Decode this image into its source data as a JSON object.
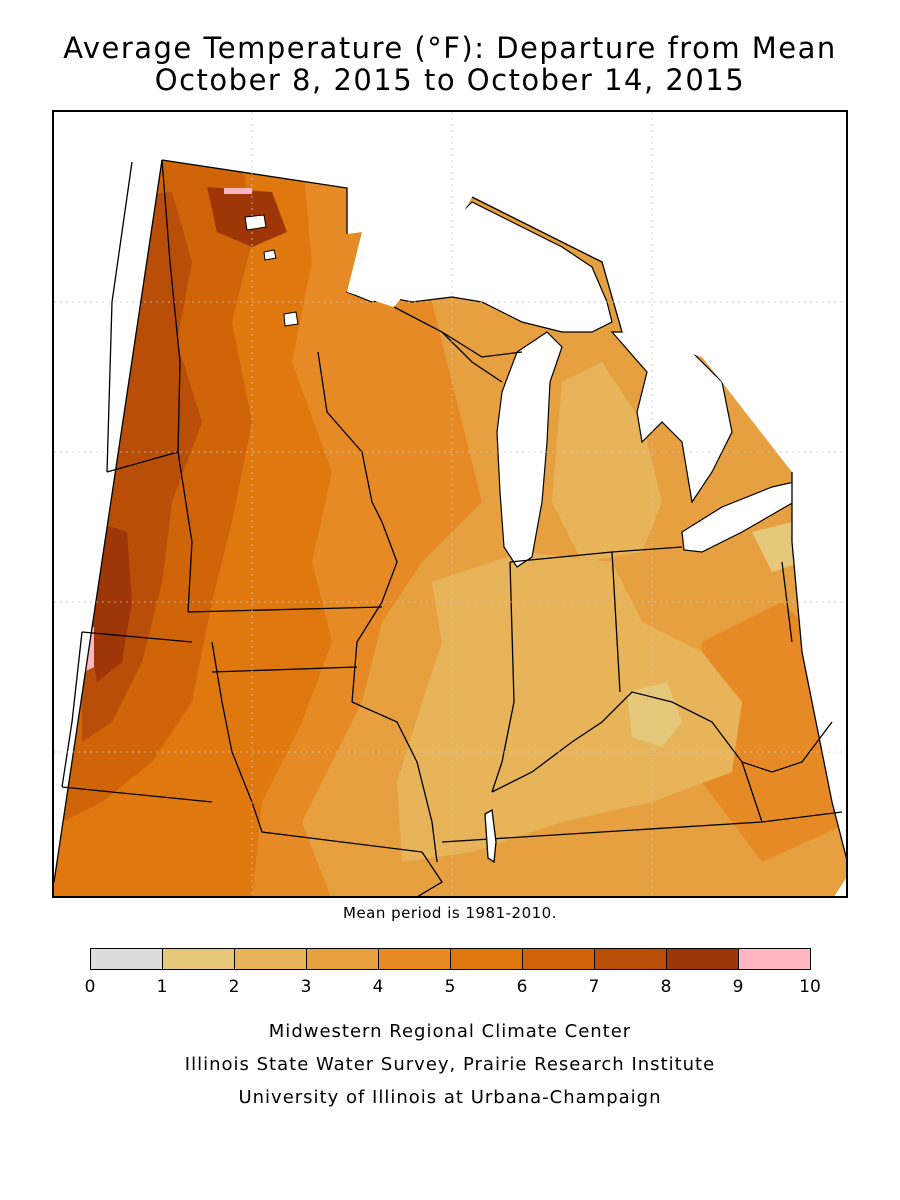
{
  "title": {
    "line1": "Average Temperature (°F): Departure from Mean",
    "line2": "October 8, 2015 to October 14, 2015"
  },
  "mean_period": "Mean period is 1981-2010.",
  "legend": {
    "ticks": [
      "0",
      "1",
      "2",
      "3",
      "4",
      "5",
      "6",
      "7",
      "8",
      "9",
      "10"
    ],
    "bins": [
      {
        "range": "0-1",
        "color": "#dcdcdc"
      },
      {
        "range": "1-2",
        "color": "#e6c87a"
      },
      {
        "range": "2-3",
        "color": "#e8b45a"
      },
      {
        "range": "3-4",
        "color": "#e6a040"
      },
      {
        "range": "4-5",
        "color": "#e68a25"
      },
      {
        "range": "5-6",
        "color": "#e07810"
      },
      {
        "range": "6-7",
        "color": "#cf6408"
      },
      {
        "range": "7-8",
        "color": "#b84e08"
      },
      {
        "range": "8-9",
        "color": "#9e3608"
      },
      {
        "range": "9-10",
        "color": "#ffb6c1"
      }
    ]
  },
  "credits": {
    "line1": "Midwestern Regional Climate Center",
    "line2": "Illinois State Water Survey, Prairie Research Institute",
    "line3": "University of Illinois at Urbana-Champaign"
  }
}
